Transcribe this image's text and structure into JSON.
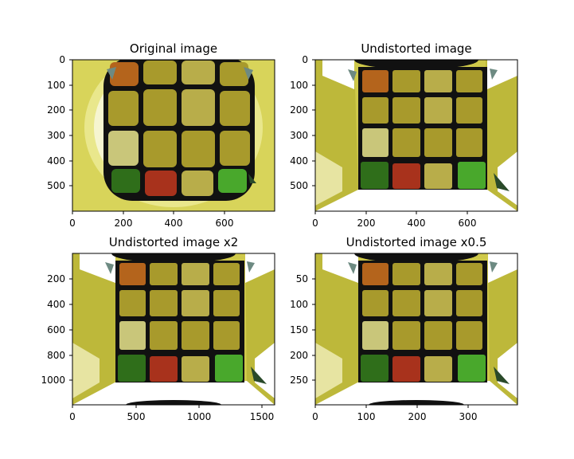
{
  "figure": {
    "panels": [
      {
        "title": "Original image",
        "variant": "fisheye",
        "xticks": [
          "0",
          "200",
          "400",
          "600"
        ],
        "yticks": [
          "0",
          "100",
          "200",
          "300",
          "400",
          "500"
        ]
      },
      {
        "title": "Undistorted image",
        "variant": "undistorted",
        "xticks": [
          "0",
          "200",
          "400",
          "600"
        ],
        "yticks": [
          "0",
          "100",
          "200",
          "300",
          "400",
          "500"
        ]
      },
      {
        "title": "Undistorted image x2",
        "variant": "undistorted",
        "xticks": [
          "0",
          "500",
          "1000",
          "1500"
        ],
        "yticks": [
          "200",
          "400",
          "600",
          "800",
          "1000"
        ]
      },
      {
        "title": "Undistorted image x0.5",
        "variant": "undistorted",
        "xticks": [
          "0",
          "100",
          "200",
          "300"
        ],
        "yticks": [
          "50",
          "100",
          "150",
          "200",
          "250"
        ]
      }
    ],
    "colors": {
      "yellow_bg": "#c8c23a",
      "black": "#111111",
      "tile_yellow": "#a89a2c",
      "tile_light": "#c9c67a",
      "tile_orange": "#b4641c",
      "tile_red": "#a8321c",
      "tile_green": "#2f6e1a",
      "tile_green_bright": "#49a82c",
      "highlight": "#ffffff"
    }
  }
}
